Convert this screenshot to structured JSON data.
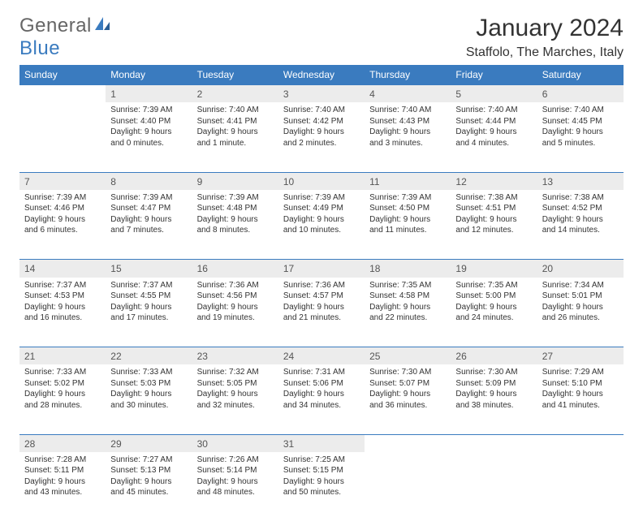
{
  "brand": {
    "part1": "General",
    "part2": "Blue"
  },
  "title": "January 2024",
  "location": "Staffolo, The Marches, Italy",
  "colors": {
    "header_bg": "#3a7bbf",
    "header_text": "#ffffff",
    "daynum_bg": "#ececec",
    "border": "#3a7bbf",
    "page_bg": "#ffffff",
    "text": "#333333"
  },
  "typography": {
    "title_fontsize": 30,
    "location_fontsize": 16,
    "header_fontsize": 12,
    "daynum_fontsize": 12,
    "body_fontsize": 10
  },
  "day_headers": [
    "Sunday",
    "Monday",
    "Tuesday",
    "Wednesday",
    "Thursday",
    "Friday",
    "Saturday"
  ],
  "weeks": [
    [
      null,
      {
        "n": "1",
        "sr": "Sunrise: 7:39 AM",
        "ss": "Sunset: 4:40 PM",
        "d1": "Daylight: 9 hours",
        "d2": "and 0 minutes."
      },
      {
        "n": "2",
        "sr": "Sunrise: 7:40 AM",
        "ss": "Sunset: 4:41 PM",
        "d1": "Daylight: 9 hours",
        "d2": "and 1 minute."
      },
      {
        "n": "3",
        "sr": "Sunrise: 7:40 AM",
        "ss": "Sunset: 4:42 PM",
        "d1": "Daylight: 9 hours",
        "d2": "and 2 minutes."
      },
      {
        "n": "4",
        "sr": "Sunrise: 7:40 AM",
        "ss": "Sunset: 4:43 PM",
        "d1": "Daylight: 9 hours",
        "d2": "and 3 minutes."
      },
      {
        "n": "5",
        "sr": "Sunrise: 7:40 AM",
        "ss": "Sunset: 4:44 PM",
        "d1": "Daylight: 9 hours",
        "d2": "and 4 minutes."
      },
      {
        "n": "6",
        "sr": "Sunrise: 7:40 AM",
        "ss": "Sunset: 4:45 PM",
        "d1": "Daylight: 9 hours",
        "d2": "and 5 minutes."
      }
    ],
    [
      {
        "n": "7",
        "sr": "Sunrise: 7:39 AM",
        "ss": "Sunset: 4:46 PM",
        "d1": "Daylight: 9 hours",
        "d2": "and 6 minutes."
      },
      {
        "n": "8",
        "sr": "Sunrise: 7:39 AM",
        "ss": "Sunset: 4:47 PM",
        "d1": "Daylight: 9 hours",
        "d2": "and 7 minutes."
      },
      {
        "n": "9",
        "sr": "Sunrise: 7:39 AM",
        "ss": "Sunset: 4:48 PM",
        "d1": "Daylight: 9 hours",
        "d2": "and 8 minutes."
      },
      {
        "n": "10",
        "sr": "Sunrise: 7:39 AM",
        "ss": "Sunset: 4:49 PM",
        "d1": "Daylight: 9 hours",
        "d2": "and 10 minutes."
      },
      {
        "n": "11",
        "sr": "Sunrise: 7:39 AM",
        "ss": "Sunset: 4:50 PM",
        "d1": "Daylight: 9 hours",
        "d2": "and 11 minutes."
      },
      {
        "n": "12",
        "sr": "Sunrise: 7:38 AM",
        "ss": "Sunset: 4:51 PM",
        "d1": "Daylight: 9 hours",
        "d2": "and 12 minutes."
      },
      {
        "n": "13",
        "sr": "Sunrise: 7:38 AM",
        "ss": "Sunset: 4:52 PM",
        "d1": "Daylight: 9 hours",
        "d2": "and 14 minutes."
      }
    ],
    [
      {
        "n": "14",
        "sr": "Sunrise: 7:37 AM",
        "ss": "Sunset: 4:53 PM",
        "d1": "Daylight: 9 hours",
        "d2": "and 16 minutes."
      },
      {
        "n": "15",
        "sr": "Sunrise: 7:37 AM",
        "ss": "Sunset: 4:55 PM",
        "d1": "Daylight: 9 hours",
        "d2": "and 17 minutes."
      },
      {
        "n": "16",
        "sr": "Sunrise: 7:36 AM",
        "ss": "Sunset: 4:56 PM",
        "d1": "Daylight: 9 hours",
        "d2": "and 19 minutes."
      },
      {
        "n": "17",
        "sr": "Sunrise: 7:36 AM",
        "ss": "Sunset: 4:57 PM",
        "d1": "Daylight: 9 hours",
        "d2": "and 21 minutes."
      },
      {
        "n": "18",
        "sr": "Sunrise: 7:35 AM",
        "ss": "Sunset: 4:58 PM",
        "d1": "Daylight: 9 hours",
        "d2": "and 22 minutes."
      },
      {
        "n": "19",
        "sr": "Sunrise: 7:35 AM",
        "ss": "Sunset: 5:00 PM",
        "d1": "Daylight: 9 hours",
        "d2": "and 24 minutes."
      },
      {
        "n": "20",
        "sr": "Sunrise: 7:34 AM",
        "ss": "Sunset: 5:01 PM",
        "d1": "Daylight: 9 hours",
        "d2": "and 26 minutes."
      }
    ],
    [
      {
        "n": "21",
        "sr": "Sunrise: 7:33 AM",
        "ss": "Sunset: 5:02 PM",
        "d1": "Daylight: 9 hours",
        "d2": "and 28 minutes."
      },
      {
        "n": "22",
        "sr": "Sunrise: 7:33 AM",
        "ss": "Sunset: 5:03 PM",
        "d1": "Daylight: 9 hours",
        "d2": "and 30 minutes."
      },
      {
        "n": "23",
        "sr": "Sunrise: 7:32 AM",
        "ss": "Sunset: 5:05 PM",
        "d1": "Daylight: 9 hours",
        "d2": "and 32 minutes."
      },
      {
        "n": "24",
        "sr": "Sunrise: 7:31 AM",
        "ss": "Sunset: 5:06 PM",
        "d1": "Daylight: 9 hours",
        "d2": "and 34 minutes."
      },
      {
        "n": "25",
        "sr": "Sunrise: 7:30 AM",
        "ss": "Sunset: 5:07 PM",
        "d1": "Daylight: 9 hours",
        "d2": "and 36 minutes."
      },
      {
        "n": "26",
        "sr": "Sunrise: 7:30 AM",
        "ss": "Sunset: 5:09 PM",
        "d1": "Daylight: 9 hours",
        "d2": "and 38 minutes."
      },
      {
        "n": "27",
        "sr": "Sunrise: 7:29 AM",
        "ss": "Sunset: 5:10 PM",
        "d1": "Daylight: 9 hours",
        "d2": "and 41 minutes."
      }
    ],
    [
      {
        "n": "28",
        "sr": "Sunrise: 7:28 AM",
        "ss": "Sunset: 5:11 PM",
        "d1": "Daylight: 9 hours",
        "d2": "and 43 minutes."
      },
      {
        "n": "29",
        "sr": "Sunrise: 7:27 AM",
        "ss": "Sunset: 5:13 PM",
        "d1": "Daylight: 9 hours",
        "d2": "and 45 minutes."
      },
      {
        "n": "30",
        "sr": "Sunrise: 7:26 AM",
        "ss": "Sunset: 5:14 PM",
        "d1": "Daylight: 9 hours",
        "d2": "and 48 minutes."
      },
      {
        "n": "31",
        "sr": "Sunrise: 7:25 AM",
        "ss": "Sunset: 5:15 PM",
        "d1": "Daylight: 9 hours",
        "d2": "and 50 minutes."
      },
      null,
      null,
      null
    ]
  ]
}
